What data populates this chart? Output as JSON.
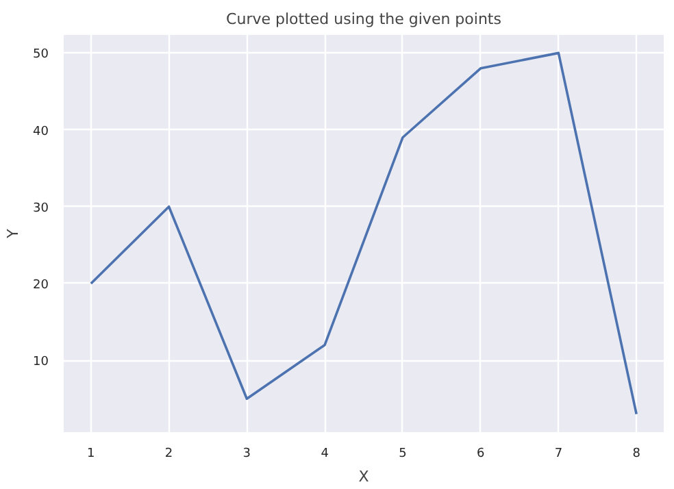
{
  "chart_data": {
    "type": "line",
    "title": "Curve plotted using the given points",
    "xlabel": "X",
    "ylabel": "Y",
    "x": [
      1,
      2,
      3,
      4,
      5,
      6,
      7,
      8
    ],
    "series": [
      {
        "color": "#4c72b0",
        "values": [
          20,
          30,
          5,
          12,
          39,
          48,
          50,
          3
        ]
      }
    ],
    "xlim": [
      0.65,
      8.35
    ],
    "ylim": [
      0.65,
      52.35
    ],
    "xticks": [
      1,
      2,
      3,
      4,
      5,
      6,
      7,
      8
    ],
    "yticks": [
      10,
      20,
      30,
      40,
      50
    ],
    "grid": true,
    "marker": "none",
    "line_style": "solid"
  }
}
